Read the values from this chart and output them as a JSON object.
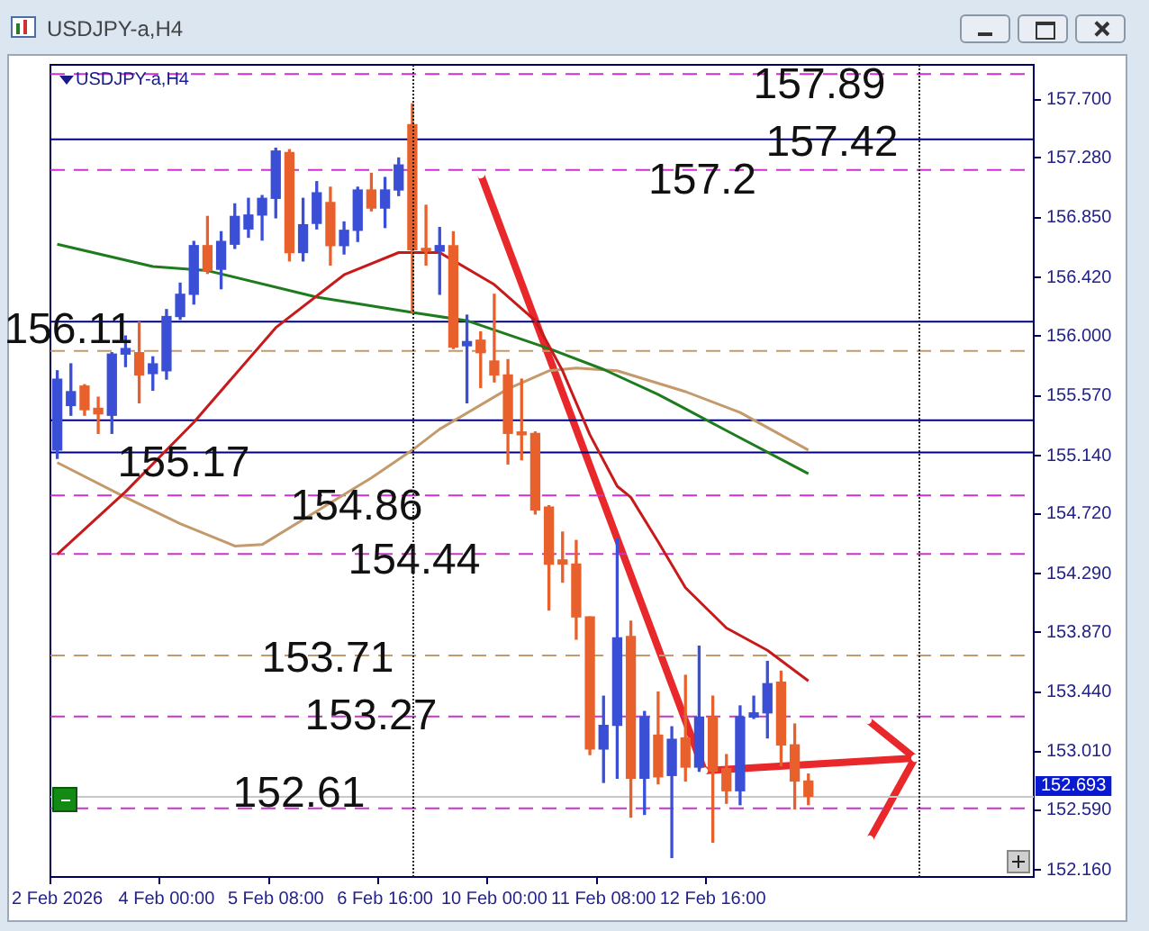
{
  "chart_data": {
    "type": "candlestick",
    "title": "USDJPY-a,H4",
    "subtitle": "USDJPY-a,H4",
    "categories": [
      "2 Feb 2026",
      null,
      null,
      null,
      null,
      null,
      null,
      null,
      "4 Feb 00:00",
      null,
      null,
      null,
      null,
      null,
      null,
      null,
      "5 Feb 08:00",
      null,
      null,
      null,
      null,
      null,
      null,
      null,
      "6 Feb 16:00",
      null,
      null,
      null,
      null,
      null,
      null,
      null,
      "10 Feb 00:00",
      null,
      null,
      null,
      null,
      null,
      null,
      null,
      "11 Feb 08:00",
      null,
      null,
      null,
      null,
      null,
      null,
      null,
      "12 Feb 16:00",
      null,
      null,
      null,
      null,
      null,
      null,
      null,
      null,
      null,
      null,
      null,
      null,
      null,
      null,
      null,
      null,
      null,
      null,
      null,
      null,
      null,
      null,
      null
    ],
    "ohlc": [
      [
        155.18,
        155.75,
        155.12,
        155.69
      ],
      [
        155.5,
        155.8,
        155.43,
        155.6
      ],
      [
        155.64,
        155.65,
        155.43,
        155.47
      ],
      [
        155.48,
        155.56,
        155.3,
        155.44
      ],
      [
        155.43,
        155.88,
        155.3,
        155.87
      ],
      [
        155.87,
        156.0,
        155.78,
        155.91
      ],
      [
        155.88,
        156.1,
        155.52,
        155.72
      ],
      [
        155.73,
        155.85,
        155.61,
        155.8
      ],
      [
        155.75,
        156.19,
        155.69,
        156.14
      ],
      [
        156.14,
        156.38,
        156.12,
        156.3
      ],
      [
        156.3,
        156.68,
        156.23,
        156.65
      ],
      [
        156.65,
        156.86,
        156.45,
        156.47
      ],
      [
        156.48,
        156.75,
        156.34,
        156.68
      ],
      [
        156.66,
        156.95,
        156.63,
        156.86
      ],
      [
        156.77,
        156.99,
        156.71,
        156.87
      ],
      [
        156.87,
        157.01,
        156.69,
        156.99
      ],
      [
        156.99,
        157.35,
        156.85,
        157.33
      ],
      [
        157.32,
        157.34,
        156.54,
        156.6
      ],
      [
        156.6,
        156.99,
        156.54,
        156.8
      ],
      [
        156.81,
        157.11,
        156.77,
        157.03
      ],
      [
        156.96,
        157.07,
        156.51,
        156.65
      ],
      [
        156.65,
        156.82,
        156.59,
        156.76
      ],
      [
        156.76,
        157.07,
        156.68,
        157.05
      ],
      [
        157.05,
        157.17,
        156.9,
        156.92
      ],
      [
        156.92,
        157.14,
        156.78,
        157.05
      ],
      [
        157.05,
        157.28,
        157.01,
        157.23
      ],
      [
        157.52,
        157.67,
        156.17,
        156.62
      ],
      [
        156.63,
        156.94,
        156.51,
        156.61
      ],
      [
        156.61,
        156.78,
        156.3,
        156.65
      ],
      [
        156.65,
        156.75,
        155.91,
        155.92
      ],
      [
        155.93,
        156.15,
        155.52,
        155.96
      ],
      [
        155.97,
        156.03,
        155.63,
        155.88
      ],
      [
        155.82,
        156.3,
        155.67,
        155.72
      ],
      [
        155.72,
        155.83,
        155.08,
        155.3
      ],
      [
        155.31,
        155.69,
        155.11,
        155.29
      ],
      [
        155.3,
        155.31,
        154.72,
        154.75
      ],
      [
        154.77,
        154.78,
        154.03,
        154.36
      ],
      [
        154.39,
        154.59,
        154.23,
        154.36
      ],
      [
        154.36,
        154.53,
        153.82,
        153.98
      ],
      [
        153.98,
        153.98,
        152.99,
        153.03
      ],
      [
        153.03,
        153.41,
        152.79,
        153.2
      ],
      [
        153.2,
        154.54,
        152.82,
        153.83
      ],
      [
        153.84,
        153.95,
        152.54,
        152.82
      ],
      [
        152.82,
        153.3,
        152.56,
        153.26
      ],
      [
        153.13,
        153.44,
        152.78,
        152.83
      ],
      [
        152.84,
        153.19,
        152.25,
        153.1
      ],
      [
        153.11,
        153.56,
        152.8,
        152.9
      ],
      [
        152.9,
        153.77,
        152.87,
        153.26
      ],
      [
        153.26,
        153.41,
        152.36,
        152.87
      ],
      [
        152.89,
        152.99,
        152.64,
        152.73
      ],
      [
        152.73,
        153.34,
        152.63,
        153.26
      ],
      [
        153.26,
        153.41,
        153.25,
        153.29
      ],
      [
        153.29,
        153.66,
        153.11,
        153.5
      ],
      [
        153.51,
        153.59,
        152.91,
        153.06
      ],
      [
        153.06,
        153.21,
        152.6,
        152.8
      ],
      [
        152.8,
        152.85,
        152.63,
        152.69
      ],
      null,
      null,
      null,
      null,
      null,
      null,
      null,
      null,
      null,
      null,
      null,
      null,
      null,
      null,
      null,
      null
    ],
    "colors": [
      "#3a4fd6",
      "#3a4fd6",
      "#e8612c",
      "#e8612c",
      "#3a4fd6",
      "#3a4fd6",
      "#e8612c",
      "#3a4fd6",
      "#3a4fd6",
      "#3a4fd6",
      "#3a4fd6",
      "#e8612c",
      "#3a4fd6",
      "#3a4fd6",
      "#3a4fd6",
      "#3a4fd6",
      "#3a4fd6",
      "#e8612c",
      "#3a4fd6",
      "#3a4fd6",
      "#e8612c",
      "#3a4fd6",
      "#3a4fd6",
      "#e8612c",
      "#3a4fd6",
      "#3a4fd6",
      "#e8612c",
      "#e8612c",
      "#3a4fd6",
      "#e8612c",
      "#3a4fd6",
      "#e8612c",
      "#e8612c",
      "#e8612c",
      "#e8612c",
      "#e8612c",
      "#e8612c",
      "#e8612c",
      "#e8612c",
      "#e8612c",
      "#3a4fd6",
      "#3a4fd6",
      "#e8612c",
      "#3a4fd6",
      "#e8612c",
      "#3a4fd6",
      "#e8612c",
      "#3a4fd6",
      "#e8612c",
      "#e8612c",
      "#3a4fd6",
      "#3a4fd6",
      "#3a4fd6",
      "#e8612c",
      "#e8612c",
      "#e8612c",
      null,
      null,
      null,
      null,
      null,
      null,
      null,
      null,
      null,
      null,
      null,
      null,
      null,
      null,
      null,
      null
    ],
    "series": [
      {
        "type": "line",
        "color": "#c81a1a",
        "values": [
          154.43,
          null,
          null,
          null,
          null,
          154.88,
          null,
          null,
          null,
          null,
          155.38,
          null,
          null,
          null,
          null,
          null,
          156.06,
          null,
          null,
          null,
          null,
          156.44,
          null,
          null,
          null,
          156.6,
          null,
          null,
          156.6,
          null,
          null,
          null,
          156.37,
          null,
          null,
          156.11,
          null,
          155.75,
          null,
          155.29,
          null,
          154.92,
          154.84,
          null,
          154.52,
          null,
          154.19,
          null,
          null,
          153.9,
          null,
          null,
          153.74,
          null,
          null,
          153.52,
          null,
          null,
          null,
          null,
          null,
          null,
          null,
          null,
          null,
          null,
          null,
          null,
          null,
          null,
          null,
          null
        ]
      },
      {
        "type": "line",
        "color": "#1e7b1e",
        "values": [
          156.66,
          null,
          null,
          null,
          null,
          null,
          null,
          156.5,
          null,
          null,
          null,
          156.47,
          null,
          null,
          null,
          null,
          null,
          null,
          null,
          156.28,
          null,
          null,
          null,
          null,
          null,
          null,
          156.17,
          null,
          null,
          null,
          156.11,
          null,
          null,
          null,
          null,
          null,
          155.91,
          null,
          null,
          null,
          155.76,
          null,
          null,
          null,
          155.58,
          null,
          null,
          null,
          null,
          155.32,
          null,
          null,
          null,
          null,
          null,
          155.01,
          null,
          null,
          null,
          null,
          null,
          null,
          null,
          null,
          null,
          null,
          null,
          null,
          null,
          null,
          null,
          null
        ]
      },
      {
        "type": "line",
        "color": "#c49a6c",
        "values": [
          155.09,
          null,
          null,
          null,
          null,
          154.84,
          null,
          null,
          null,
          154.65,
          null,
          null,
          null,
          154.49,
          null,
          154.5,
          null,
          null,
          null,
          154.74,
          null,
          null,
          null,
          154.98,
          null,
          null,
          155.18,
          null,
          155.33,
          null,
          null,
          null,
          null,
          155.62,
          null,
          null,
          155.75,
          null,
          155.77,
          null,
          null,
          155.75,
          null,
          null,
          null,
          null,
          155.6,
          null,
          null,
          null,
          155.45,
          null,
          null,
          null,
          null,
          155.18,
          null,
          null,
          null,
          null,
          null,
          null,
          null,
          null,
          null,
          null,
          null,
          null,
          null,
          null,
          null,
          null
        ]
      }
    ],
    "ylim": [
      152.11,
      157.95
    ],
    "yticks": [
      {
        "value": 157.7,
        "label": "157.700"
      },
      {
        "value": 157.28,
        "label": "157.280"
      },
      {
        "value": 156.85,
        "label": "156.850"
      },
      {
        "value": 156.42,
        "label": "156.420"
      },
      {
        "value": 156.0,
        "label": "156.000"
      },
      {
        "value": 155.57,
        "label": "155.570"
      },
      {
        "value": 155.14,
        "label": "155.140"
      },
      {
        "value": 154.72,
        "label": "154.720"
      },
      {
        "value": 154.29,
        "label": "154.290"
      },
      {
        "value": 153.87,
        "label": "153.870"
      },
      {
        "value": 153.44,
        "label": "153.440"
      },
      {
        "value": 153.01,
        "label": "153.010"
      },
      {
        "value": 152.59,
        "label": "152.590"
      },
      {
        "value": 152.16,
        "label": "152.160"
      }
    ],
    "ref_lines": [
      {
        "axis": "y",
        "value": 157.89,
        "label": "157.89",
        "color": "#cc33cc",
        "line_style": "dashed"
      },
      {
        "axis": "y",
        "value": 157.42,
        "label": "157.42",
        "color": "#000080",
        "line_style": "solid"
      },
      {
        "axis": "y",
        "value": 157.2,
        "label": "157.2",
        "color": "#cc33cc",
        "line_style": "dashed"
      },
      {
        "axis": "y",
        "value": 156.11,
        "label": "156.11",
        "color": "#000080",
        "line_style": "solid"
      },
      {
        "axis": "y",
        "value": 155.9,
        "color": "#c49a6c",
        "line_style": "dashed"
      },
      {
        "axis": "y",
        "value": 155.4,
        "color": "#000080",
        "line_style": "solid"
      },
      {
        "axis": "y",
        "value": 155.17,
        "label": "155.17",
        "color": "#000080",
        "line_style": "solid"
      },
      {
        "axis": "y",
        "value": 154.86,
        "label": "154.86",
        "color": "#cc33cc",
        "line_style": "dashed"
      },
      {
        "axis": "y",
        "value": 154.44,
        "label": "154.44",
        "color": "#cc33cc",
        "line_style": "dashed"
      },
      {
        "axis": "y",
        "value": 153.71,
        "label": "153.71",
        "color": "#c49a6c",
        "line_style": "dashed"
      },
      {
        "axis": "y",
        "value": 153.27,
        "label": "153.27",
        "color": "#cc33cc",
        "line_style": "dashed"
      },
      {
        "axis": "y",
        "value": 152.61,
        "label": "152.61",
        "color": "#cc33cc",
        "line_style": "dashed"
      },
      {
        "axis": "y",
        "value": 152.693,
        "label": "152.693",
        "color": "#c8c8c8",
        "line_style": "solid"
      }
    ]
  }
}
